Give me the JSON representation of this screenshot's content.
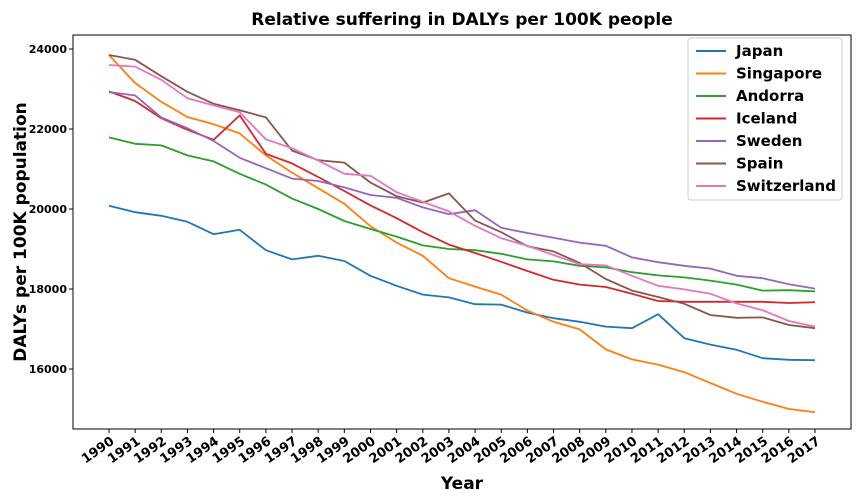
{
  "chart_data": {
    "type": "line",
    "title": "Relative suffering in DALYs per 100K people",
    "xlabel": "Year",
    "ylabel": "DALYs per 100K population",
    "x": [
      "1990",
      "1991",
      "1992",
      "1993",
      "1994",
      "1995",
      "1996",
      "1997",
      "1998",
      "1999",
      "2000",
      "2001",
      "2002",
      "2003",
      "2004",
      "2005",
      "2006",
      "2007",
      "2008",
      "2009",
      "2010",
      "2011",
      "2012",
      "2013",
      "2014",
      "2015",
      "2016",
      "2017"
    ],
    "yticks": [
      "16000",
      "18000",
      "20000",
      "22000",
      "24000"
    ],
    "ylim": [
      14500,
      24350
    ],
    "legend_position": "top-right",
    "grid": false,
    "series": [
      {
        "name": "Japan",
        "color": "#1f77b4",
        "values": [
          20080,
          19920,
          19830,
          19680,
          19370,
          19480,
          18970,
          18740,
          18830,
          18700,
          18330,
          18080,
          17860,
          17790,
          17620,
          17610,
          17410,
          17270,
          17180,
          17060,
          17020,
          17370,
          16770,
          16610,
          16480,
          16270,
          16230,
          16220
        ]
      },
      {
        "name": "Singapore",
        "color": "#ff7f0e",
        "values": [
          23850,
          23150,
          22680,
          22300,
          22120,
          21890,
          21340,
          20910,
          20520,
          20130,
          19570,
          19160,
          18830,
          18270,
          18060,
          17860,
          17460,
          17180,
          16990,
          16490,
          16240,
          16110,
          15920,
          15650,
          15380,
          15180,
          15000,
          14920
        ]
      },
      {
        "name": "Andorra",
        "color": "#2ca02c",
        "values": [
          21790,
          21630,
          21590,
          21340,
          21190,
          20880,
          20610,
          20260,
          20000,
          19700,
          19500,
          19310,
          19090,
          19000,
          18970,
          18880,
          18740,
          18690,
          18580,
          18540,
          18420,
          18340,
          18290,
          18210,
          18110,
          17960,
          17970,
          17940
        ]
      },
      {
        "name": "Iceland",
        "color": "#d62728",
        "values": [
          22940,
          22700,
          22270,
          21980,
          21730,
          22340,
          21380,
          21140,
          20800,
          20450,
          20090,
          19770,
          19420,
          19110,
          18900,
          18680,
          18450,
          18230,
          18110,
          18050,
          17880,
          17700,
          17680,
          17680,
          17680,
          17680,
          17650,
          17670
        ]
      },
      {
        "name": "Sweden",
        "color": "#9467bd",
        "values": [
          22920,
          22840,
          22290,
          22020,
          21700,
          21280,
          21020,
          20760,
          20700,
          20540,
          20350,
          20280,
          20040,
          19870,
          19970,
          19530,
          19400,
          19280,
          19160,
          19080,
          18790,
          18670,
          18580,
          18510,
          18330,
          18270,
          18120,
          18010
        ]
      },
      {
        "name": "Spain",
        "color": "#8c564b",
        "values": [
          23850,
          23730,
          23320,
          22930,
          22630,
          22470,
          22290,
          21460,
          21220,
          21160,
          20660,
          20320,
          20160,
          20390,
          19710,
          19420,
          19070,
          18940,
          18650,
          18250,
          17960,
          17800,
          17630,
          17350,
          17280,
          17290,
          17100,
          17020
        ]
      },
      {
        "name": "Switzerland",
        "color": "#e377c2",
        "values": [
          23600,
          23560,
          23230,
          22770,
          22590,
          22420,
          21740,
          21520,
          21210,
          20880,
          20830,
          20420,
          20180,
          19940,
          19580,
          19270,
          19080,
          18850,
          18620,
          18590,
          18330,
          18080,
          17990,
          17880,
          17640,
          17470,
          17200,
          17060
        ]
      }
    ]
  }
}
